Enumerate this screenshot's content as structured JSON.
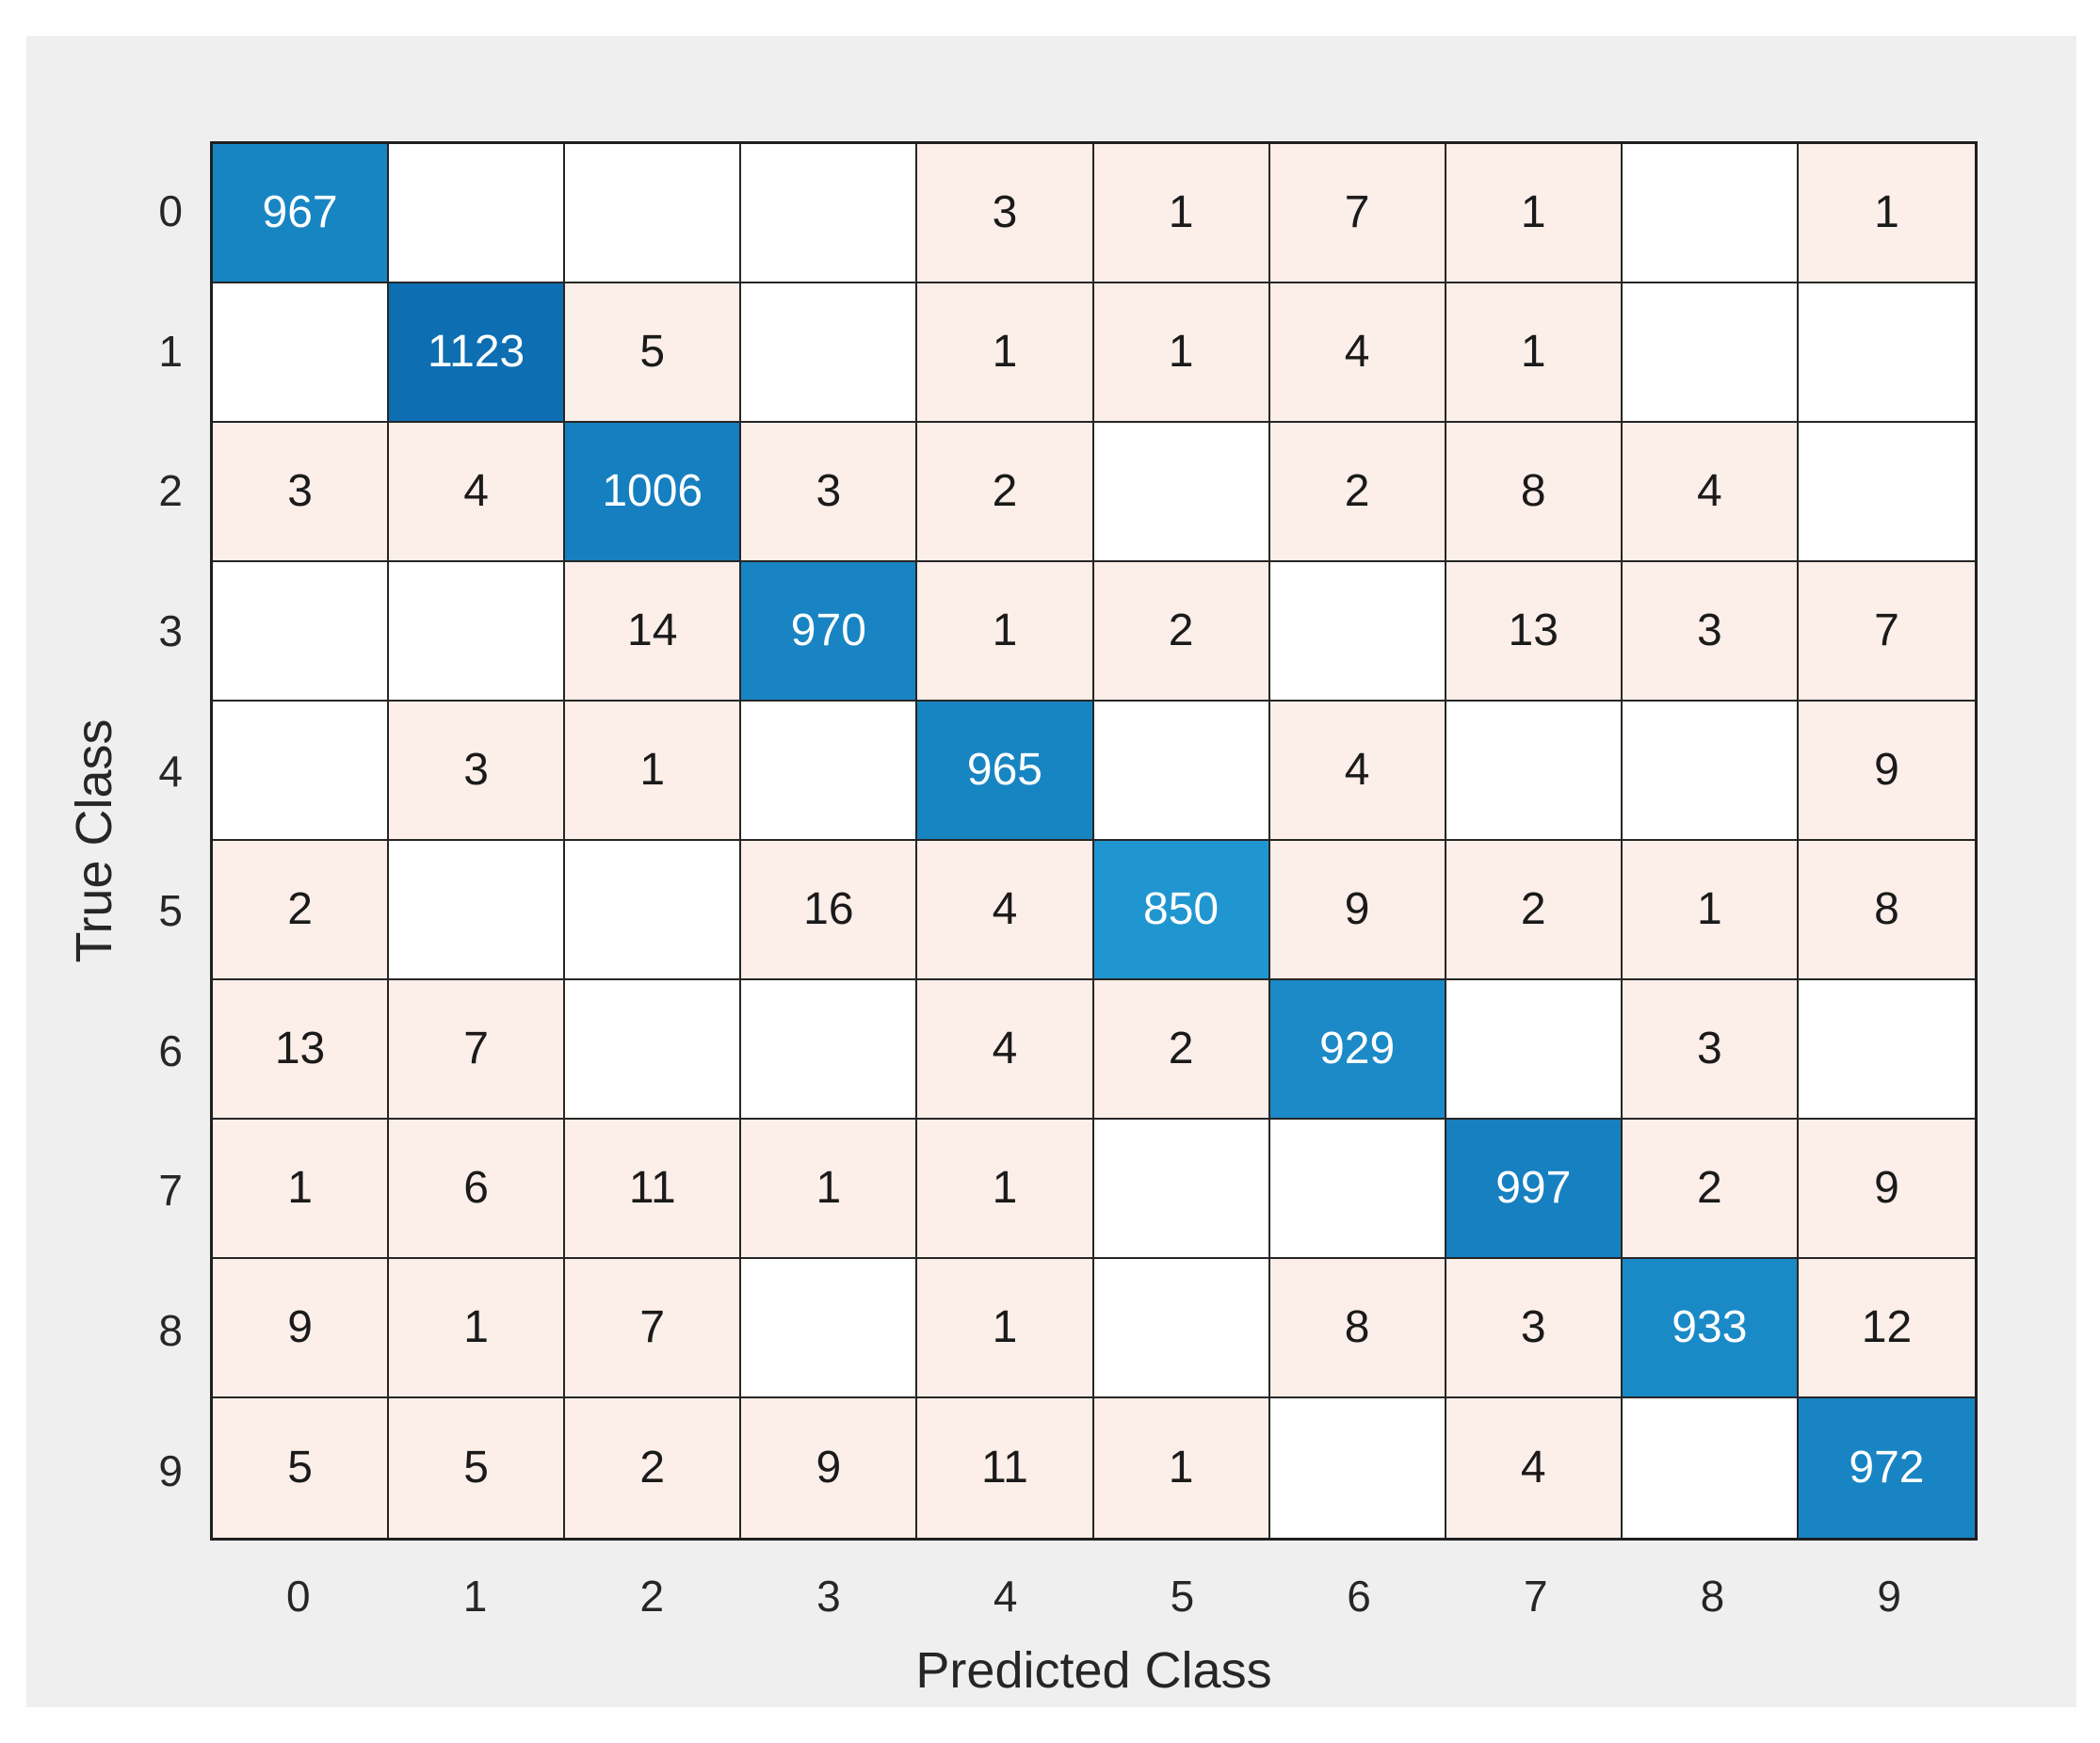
{
  "chart_data": {
    "type": "heatmap",
    "subtype": "confusion-matrix",
    "title": "",
    "xlabel": "Predicted Class",
    "ylabel": "True Class",
    "x_tick_labels": [
      "0",
      "1",
      "2",
      "3",
      "4",
      "5",
      "6",
      "7",
      "8",
      "9"
    ],
    "y_tick_labels": [
      "0",
      "1",
      "2",
      "3",
      "4",
      "5",
      "6",
      "7",
      "8",
      "9"
    ],
    "matrix": [
      [
        967,
        0,
        0,
        0,
        3,
        1,
        7,
        1,
        0,
        1
      ],
      [
        0,
        1123,
        5,
        0,
        1,
        1,
        4,
        1,
        0,
        0
      ],
      [
        3,
        4,
        1006,
        3,
        2,
        0,
        2,
        8,
        4,
        0
      ],
      [
        0,
        0,
        14,
        970,
        1,
        2,
        0,
        13,
        3,
        7
      ],
      [
        0,
        3,
        1,
        0,
        965,
        0,
        4,
        0,
        0,
        9
      ],
      [
        2,
        0,
        0,
        16,
        4,
        850,
        9,
        2,
        1,
        8
      ],
      [
        13,
        7,
        0,
        0,
        4,
        2,
        929,
        0,
        3,
        0
      ],
      [
        1,
        6,
        11,
        1,
        1,
        0,
        0,
        997,
        2,
        9
      ],
      [
        9,
        1,
        7,
        0,
        1,
        0,
        8,
        3,
        933,
        12
      ],
      [
        5,
        5,
        2,
        9,
        11,
        1,
        0,
        4,
        0,
        972
      ]
    ],
    "diagonal_values": [
      967,
      1123,
      1006,
      970,
      965,
      850,
      929,
      997,
      933,
      972
    ],
    "legend": "none",
    "grid": true,
    "colors": {
      "diagonal_min": "#2096d0",
      "diagonal_max": "#0d6eb2",
      "offdiagonal_nonzero": "#fceee8",
      "zero_cell": "#ffffff",
      "grid_line": "#262626",
      "cell_text_dark": "#1a1a1a",
      "cell_text_light": "#ffffff",
      "panel_background": "#efefef",
      "page_background": "#ffffff"
    }
  }
}
